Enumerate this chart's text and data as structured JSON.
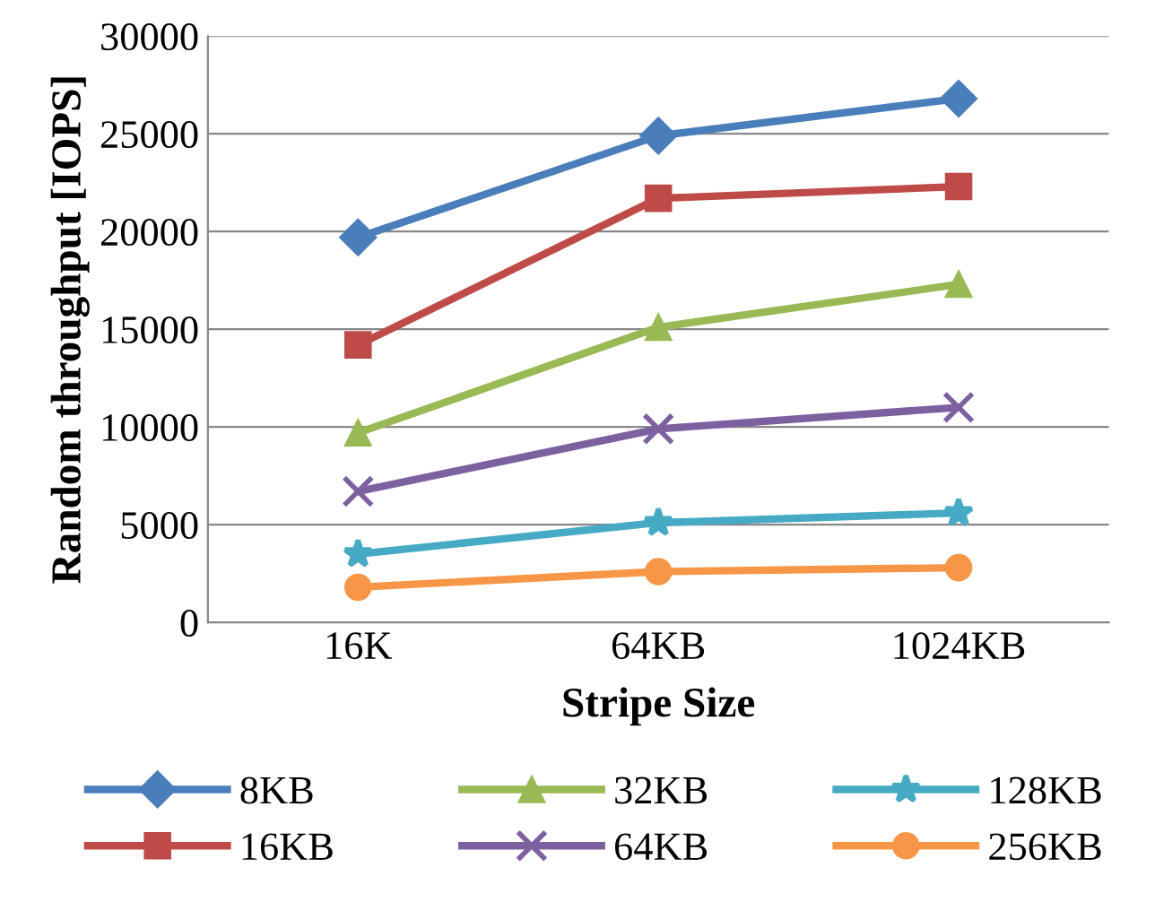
{
  "chart_data": {
    "type": "line",
    "xlabel": "Stripe Size",
    "ylabel": "Random throughput [IOPS]",
    "categories": [
      "16K",
      "64KB",
      "1024KB"
    ],
    "series": [
      {
        "name": "8KB",
        "color": "#4a7ebb",
        "marker": "diamond",
        "values": [
          19700,
          24900,
          26800
        ]
      },
      {
        "name": "16KB",
        "color": "#be4b48",
        "marker": "square",
        "values": [
          14200,
          21700,
          22300
        ]
      },
      {
        "name": "32KB",
        "color": "#98b954",
        "marker": "triangle",
        "values": [
          9700,
          15100,
          17300
        ]
      },
      {
        "name": "64KB",
        "color": "#7d60a0",
        "marker": "cross",
        "values": [
          6700,
          9900,
          11000
        ]
      },
      {
        "name": "128KB",
        "color": "#46aac5",
        "marker": "star",
        "values": [
          3500,
          5100,
          5600
        ]
      },
      {
        "name": "256KB",
        "color": "#f79646",
        "marker": "circle",
        "values": [
          1800,
          2600,
          2800
        ]
      }
    ],
    "ylim": [
      0,
      30000
    ],
    "yticks": [
      0,
      5000,
      10000,
      15000,
      20000,
      25000,
      30000
    ],
    "grid": "y",
    "legend": "bottom",
    "line_style": "solid"
  }
}
